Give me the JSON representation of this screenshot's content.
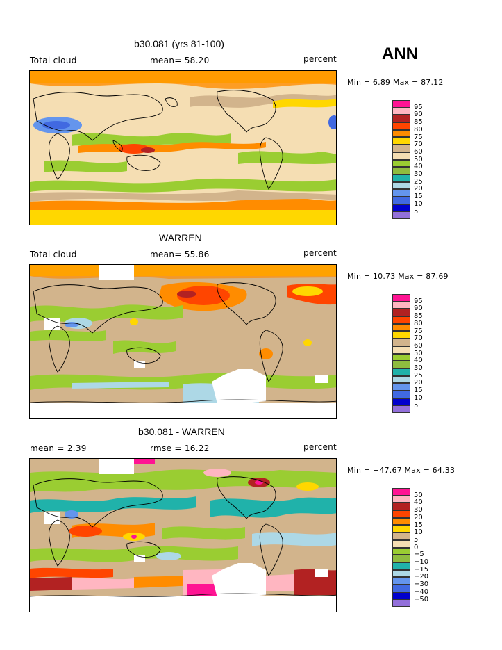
{
  "season": "ANN",
  "panels": [
    {
      "title": "b30.081 (yrs 81-100)",
      "left_label": "Total cloud",
      "center_label": "mean=  58.20",
      "right_label": "percent",
      "minmax": "Min =    6.89  Max =   87.12",
      "colorbar": {
        "labels": [
          "95",
          "90",
          "85",
          "80",
          "75",
          "70",
          "60",
          "50",
          "40",
          "30",
          "25",
          "20",
          "15",
          "10",
          "5"
        ],
        "colors": [
          "#ff1493",
          "#ffb6c1",
          "#b22222",
          "#ff4500",
          "#ff8c00",
          "#ffd700",
          "#d2b48c",
          "#f5deb3",
          "#9acd32",
          "#8fbc3f",
          "#20b2aa",
          "#add8e6",
          "#6495ed",
          "#4169e1",
          "#0000cd",
          "#9370db"
        ]
      }
    },
    {
      "title": "WARREN",
      "left_label": "Total cloud",
      "center_label": "mean=  55.86",
      "right_label": "percent",
      "minmax": "Min =   10.73  Max =   87.69",
      "colorbar": {
        "labels": [
          "95",
          "90",
          "85",
          "80",
          "75",
          "70",
          "60",
          "50",
          "40",
          "30",
          "25",
          "20",
          "15",
          "10",
          "5"
        ],
        "colors": [
          "#ff1493",
          "#ffb6c1",
          "#b22222",
          "#ff4500",
          "#ff8c00",
          "#ffd700",
          "#d2b48c",
          "#f5deb3",
          "#9acd32",
          "#8fbc3f",
          "#20b2aa",
          "#add8e6",
          "#6495ed",
          "#4169e1",
          "#0000cd",
          "#9370db"
        ]
      }
    },
    {
      "title": "b30.081 - WARREN",
      "left_label": "mean =     2.39",
      "center_label": "rmse =   16.22",
      "right_label": "percent",
      "minmax": "Min = −47.67  Max =   64.33",
      "colorbar": {
        "labels": [
          "50",
          "40",
          "30",
          "20",
          "15",
          "10",
          "5",
          "0",
          "−5",
          "−10",
          "−15",
          "−20",
          "−30",
          "−40",
          "−50"
        ],
        "colors": [
          "#ff1493",
          "#ffb6c1",
          "#b22222",
          "#ff4500",
          "#ff8c00",
          "#ffd700",
          "#d2b48c",
          "#f5deb3",
          "#9acd32",
          "#8fbc3f",
          "#20b2aa",
          "#add8e6",
          "#6495ed",
          "#4169e1",
          "#0000cd",
          "#9370db"
        ]
      }
    }
  ]
}
